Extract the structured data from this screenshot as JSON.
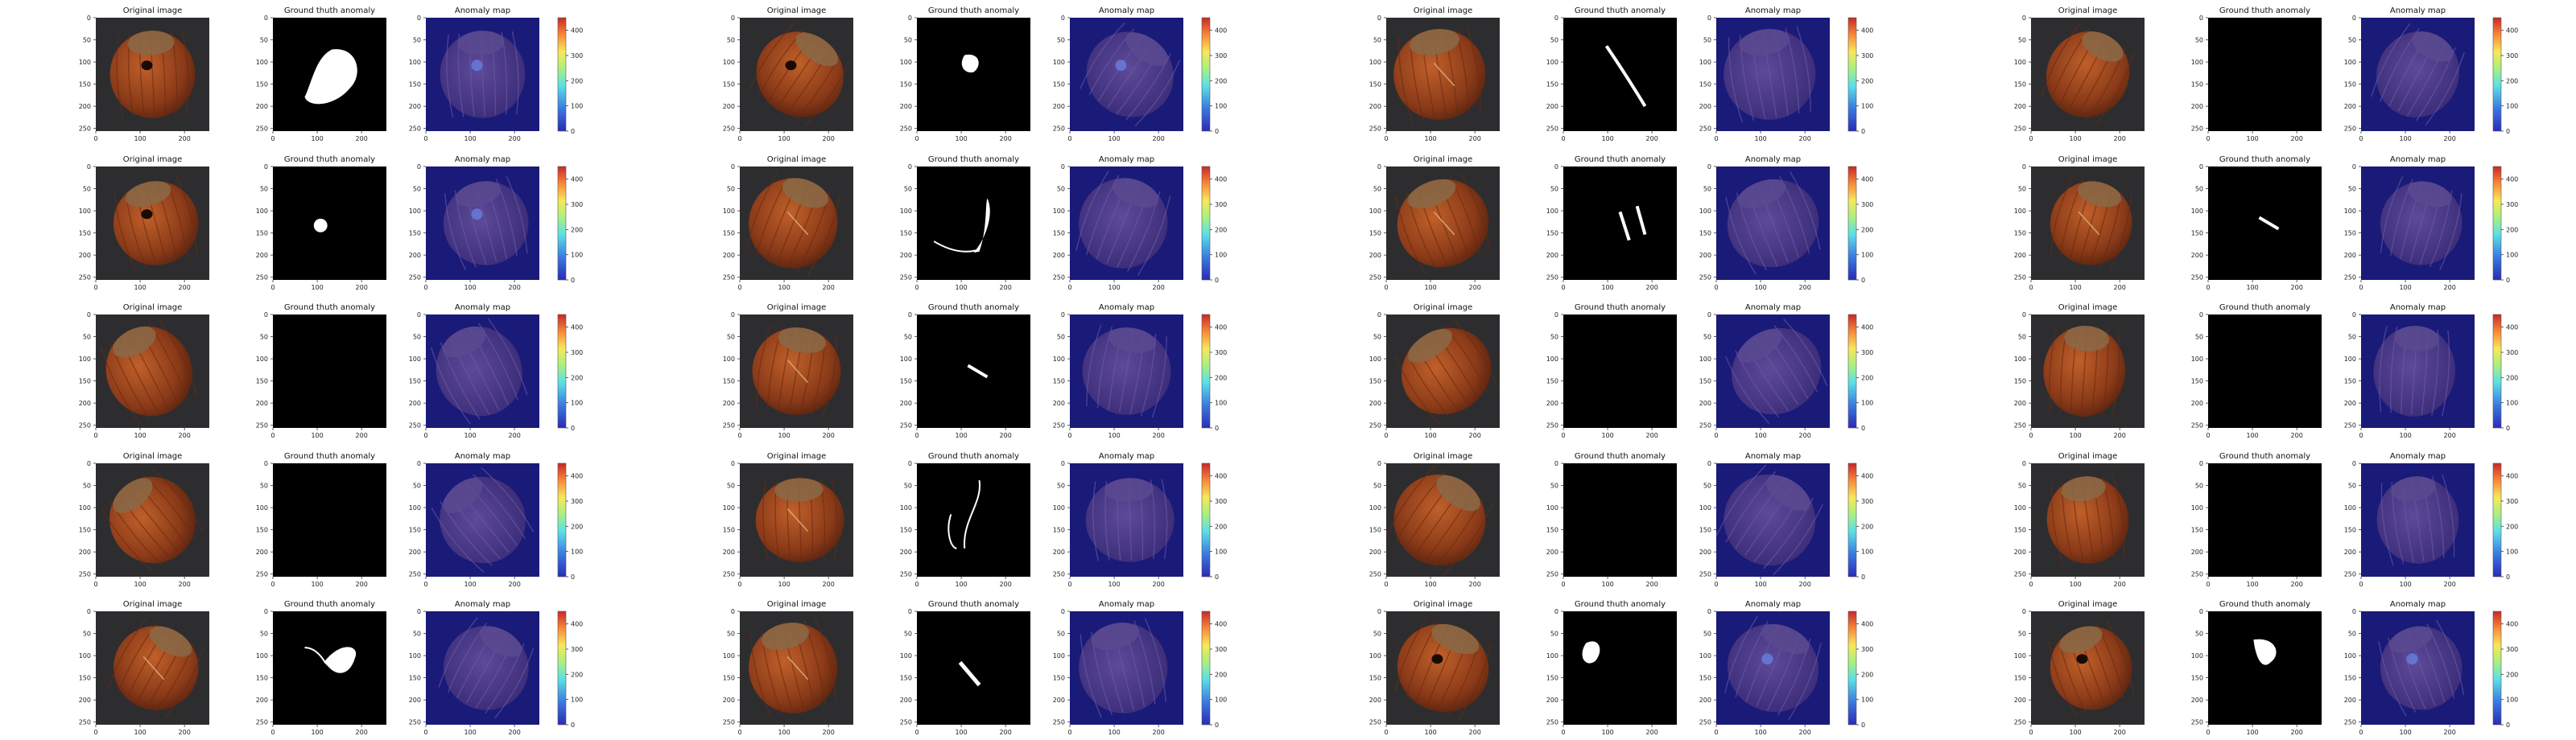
{
  "figure": {
    "panel_titles": {
      "original": "Original image",
      "ground_truth": "Ground thuth anomaly",
      "anomaly_map": "Anomaly map"
    },
    "axis_ticks": [
      "0",
      "50",
      "100",
      "150",
      "200",
      "250"
    ],
    "x_ticks": [
      "0",
      "100",
      "200"
    ],
    "colorbar_ticks": [
      "0",
      "100",
      "200",
      "300",
      "400"
    ],
    "colors": {
      "background": "#ffffff",
      "photo_bg": "#2d2d2f",
      "nut_shell": "#8a3a18",
      "nut_cap": "#8a6a48",
      "mask_bg": "#000000",
      "mask_fg": "#ffffff",
      "heatmap_bg": "#1a1a78",
      "heatmap_nut": "#4a3a8a"
    }
  },
  "chart_data": {
    "type": "heatmap",
    "grid": {
      "sample_rows": 5,
      "sample_columns": 4,
      "panels_per_sample": 3
    },
    "axes": {
      "xlim": [
        0,
        256
      ],
      "ylim": [
        256,
        0
      ],
      "x_ticks": [
        0,
        100,
        200
      ],
      "y_ticks": [
        0,
        50,
        100,
        150,
        200,
        250
      ]
    },
    "colorbar": {
      "range": [
        0,
        450
      ],
      "ticks": [
        0,
        100,
        200,
        300,
        400
      ],
      "colormap": "jet"
    },
    "samples": [
      {
        "row": 1,
        "col": 1,
        "defect": "hole",
        "mask": "blob-large"
      },
      {
        "row": 1,
        "col": 2,
        "defect": "hole",
        "mask": "blob-small"
      },
      {
        "row": 1,
        "col": 3,
        "defect": "crack",
        "mask": "line-long"
      },
      {
        "row": 1,
        "col": 4,
        "defect": "good",
        "mask": "none"
      },
      {
        "row": 2,
        "col": 1,
        "defect": "hole",
        "mask": "dot"
      },
      {
        "row": 2,
        "col": 2,
        "defect": "crack",
        "mask": "crack-curve"
      },
      {
        "row": 2,
        "col": 3,
        "defect": "scratch",
        "mask": "two-lines"
      },
      {
        "row": 2,
        "col": 4,
        "defect": "scratch",
        "mask": "line-short"
      },
      {
        "row": 3,
        "col": 1,
        "defect": "good",
        "mask": "none"
      },
      {
        "row": 3,
        "col": 2,
        "defect": "scratch",
        "mask": "line-short"
      },
      {
        "row": 3,
        "col": 3,
        "defect": "good",
        "mask": "none"
      },
      {
        "row": 3,
        "col": 4,
        "defect": "good",
        "mask": "none"
      },
      {
        "row": 4,
        "col": 1,
        "defect": "good",
        "mask": "none"
      },
      {
        "row": 4,
        "col": 2,
        "defect": "crack",
        "mask": "outline-curve"
      },
      {
        "row": 4,
        "col": 3,
        "defect": "good",
        "mask": "none"
      },
      {
        "row": 4,
        "col": 4,
        "defect": "good",
        "mask": "none"
      },
      {
        "row": 5,
        "col": 1,
        "defect": "crack",
        "mask": "leaf"
      },
      {
        "row": 5,
        "col": 2,
        "defect": "scratch",
        "mask": "line-medium"
      },
      {
        "row": 5,
        "col": 3,
        "defect": "hole",
        "mask": "blob-side"
      },
      {
        "row": 5,
        "col": 4,
        "defect": "hole",
        "mask": "blob-mid"
      }
    ]
  }
}
